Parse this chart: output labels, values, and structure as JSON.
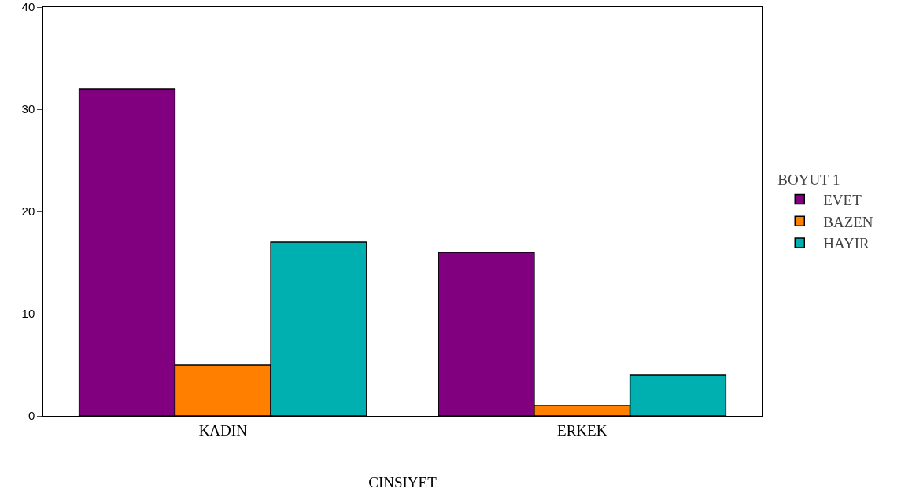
{
  "chart_data": {
    "type": "bar",
    "xlabel": "CINSIYET",
    "legend_title": "BOYUT 1",
    "categories": [
      "KADIN",
      "ERKEK"
    ],
    "series": [
      {
        "name": "EVET",
        "color": "#800080",
        "values": [
          32,
          16
        ]
      },
      {
        "name": "BAZEN",
        "color": "#ff8000",
        "values": [
          5,
          1
        ]
      },
      {
        "name": "HAYIR",
        "color": "#00b0b0",
        "values": [
          17,
          4
        ]
      }
    ],
    "ylim": [
      0,
      40
    ],
    "yticks": [
      0,
      10,
      20,
      30,
      40
    ],
    "grid": false,
    "legend": "right"
  }
}
